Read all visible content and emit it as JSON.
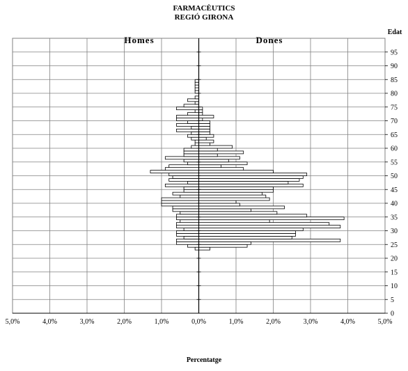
{
  "chart_data": {
    "type": "bar",
    "orientation": "horizontal-population-pyramid",
    "title": "FARMACÈUTICS",
    "subtitle": "REGIÓ GIRONA",
    "xlabel": "Percentatge",
    "ylabel": "Edat",
    "left_label": "Homes",
    "right_label": "Dones",
    "xlim": [
      -5,
      5
    ],
    "xticks": [
      -5,
      -4,
      -3,
      -2,
      -1,
      0,
      1,
      2,
      3,
      4,
      5
    ],
    "xtick_labels": [
      "5,0%",
      "4,0%",
      "3,0%",
      "2,0%",
      "1,0%",
      "0,0%",
      "1,0%",
      "2,0%",
      "3,0%",
      "4,0%",
      "5,0%"
    ],
    "ylim": [
      0,
      100
    ],
    "yticks": [
      0,
      5,
      10,
      15,
      20,
      25,
      30,
      35,
      40,
      45,
      50,
      55,
      60,
      65,
      70,
      75,
      80,
      85,
      90,
      95
    ],
    "grid": true,
    "bar_color": "#ffffff",
    "bar_edge_color": "#000000",
    "series": [
      {
        "name": "Homes",
        "ages": [
          23,
          24,
          25,
          26,
          27,
          28,
          29,
          30,
          31,
          32,
          33,
          34,
          35,
          36,
          37,
          38,
          39,
          40,
          41,
          42,
          43,
          44,
          45,
          46,
          47,
          48,
          49,
          50,
          51,
          52,
          53,
          54,
          55,
          56,
          57,
          58,
          59,
          60,
          61,
          62,
          63,
          64,
          65,
          66,
          67,
          68,
          69,
          70,
          71,
          72,
          73,
          74,
          75,
          76,
          77,
          78,
          79,
          80,
          81,
          82,
          83,
          84
        ],
        "values": [
          0.1,
          0.3,
          0.6,
          0.6,
          0.4,
          0.6,
          0.6,
          0.4,
          0.6,
          0.6,
          0.5,
          0.6,
          0.6,
          0.5,
          0.7,
          0.7,
          1.0,
          1.0,
          1.0,
          0.5,
          0.7,
          0.4,
          0.4,
          0.9,
          0.3,
          0.8,
          0.7,
          0.8,
          1.3,
          0.9,
          0.8,
          0.3,
          0.4,
          0.9,
          0.4,
          0.4,
          0.4,
          0.2,
          0.1,
          0.1,
          0.2,
          0.3,
          0.2,
          0.6,
          0.2,
          0.6,
          0.3,
          0.6,
          0.6,
          0.3,
          0.1,
          0.6,
          0.4,
          0.1,
          0.3,
          0.1,
          0,
          0.1,
          0.1,
          0.1,
          0.1,
          0.1
        ]
      },
      {
        "name": "Dones",
        "ages": [
          23,
          24,
          25,
          26,
          27,
          28,
          29,
          30,
          31,
          32,
          33,
          34,
          35,
          36,
          37,
          38,
          39,
          40,
          41,
          42,
          43,
          44,
          45,
          46,
          47,
          48,
          49,
          50,
          51,
          52,
          53,
          54,
          55,
          56,
          57,
          58,
          59,
          60,
          61,
          62,
          63,
          64,
          65,
          66,
          67,
          68,
          69,
          70,
          71,
          72,
          73,
          74,
          75,
          76,
          77,
          78,
          79,
          80,
          81,
          82,
          83,
          84
        ],
        "values": [
          0.3,
          1.3,
          1.4,
          3.8,
          2.5,
          2.6,
          2.6,
          2.8,
          3.8,
          3.5,
          1.9,
          3.9,
          2.9,
          2.1,
          1.4,
          2.3,
          1.1,
          1.0,
          1.9,
          1.8,
          1.7,
          2.0,
          2.0,
          2.8,
          2.4,
          2.7,
          2.8,
          2.9,
          2.0,
          1.2,
          0.6,
          1.3,
          0.8,
          1.1,
          0.5,
          1.2,
          0.5,
          0.9,
          0.3,
          0.4,
          0.2,
          0.4,
          0.3,
          0.3,
          0.3,
          0.3,
          0.3,
          0.1,
          0.4,
          0.1,
          0.1,
          0.1,
          0,
          0,
          0,
          0,
          0,
          0,
          0,
          0,
          0,
          0
        ]
      }
    ]
  }
}
